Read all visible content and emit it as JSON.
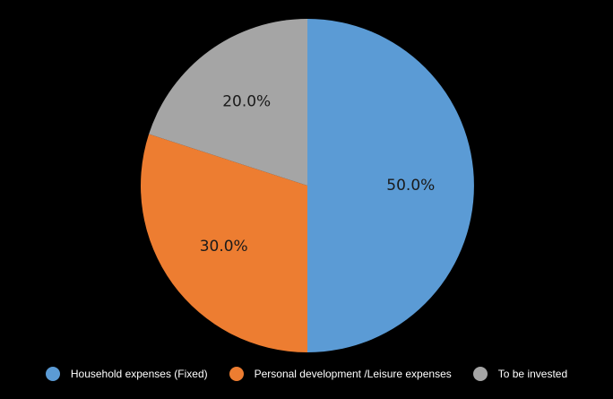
{
  "chart_data": {
    "type": "pie",
    "categories": [
      "Household expenses (Fixed)",
      "Personal development /Leisure expenses",
      "To be invested"
    ],
    "values": [
      50.0,
      30.0,
      20.0
    ],
    "data_labels": [
      "50.0%",
      "30.0%",
      "20.0%"
    ],
    "colors": [
      "#5b9bd5",
      "#ed7d31",
      "#a5a5a5"
    ],
    "start_angle": "12 o'clock",
    "direction": "clockwise",
    "legend_position": "bottom",
    "background": "#000000",
    "label_color": "#1a1a1a"
  },
  "legend": {
    "items": [
      {
        "label": "Household expenses (Fixed)",
        "color": "#5b9bd5"
      },
      {
        "label": "Personal development /Leisure expenses",
        "color": "#ed7d31"
      },
      {
        "label": "To be invested",
        "color": "#a5a5a5"
      }
    ]
  }
}
